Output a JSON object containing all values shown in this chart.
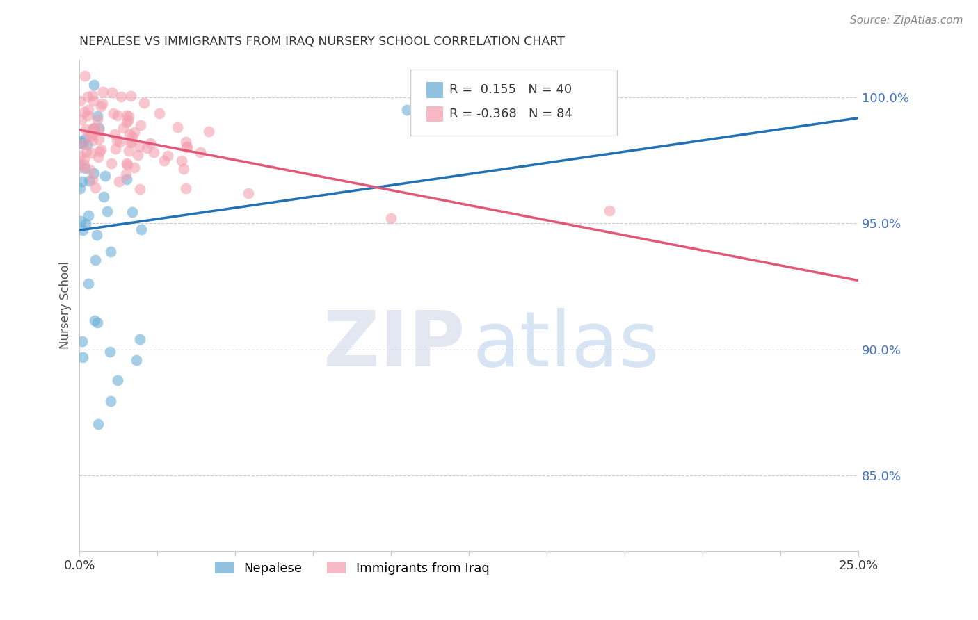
{
  "title": "NEPALESE VS IMMIGRANTS FROM IRAQ NURSERY SCHOOL CORRELATION CHART",
  "source": "Source: ZipAtlas.com",
  "ylabel": "Nursery School",
  "ytick_values": [
    85.0,
    90.0,
    95.0,
    100.0
  ],
  "xlim": [
    0.0,
    25.0
  ],
  "ylim": [
    82.0,
    101.5
  ],
  "nepalese_color": "#6baed6",
  "iraq_color": "#f4a0b0",
  "nepalese_line_color": "#2171b5",
  "iraq_line_color": "#e05878",
  "nepalese_R": 0.155,
  "nepalese_N": 40,
  "iraq_R": -0.368,
  "iraq_N": 84,
  "watermark_zip_color": "#d0d8e8",
  "watermark_atlas_color": "#a8c4e8",
  "right_axis_color": "#4472c4",
  "grid_color": "#cccccc"
}
